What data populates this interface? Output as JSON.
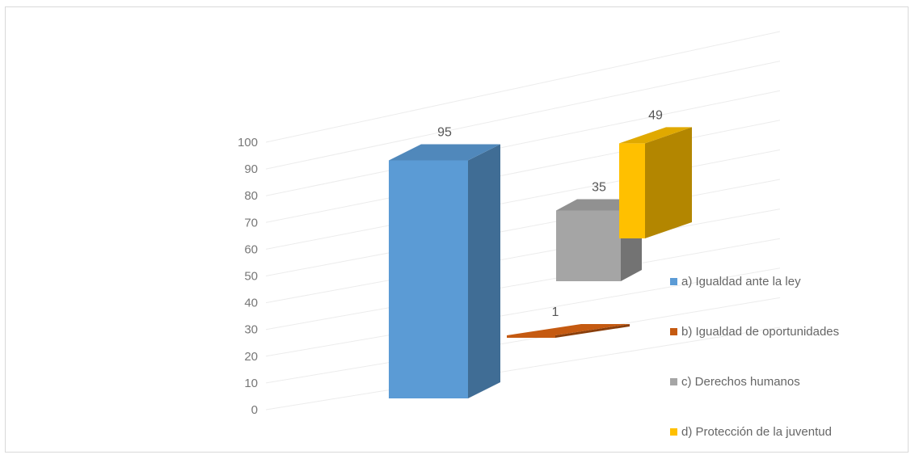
{
  "chart_data": {
    "type": "bar",
    "title": "",
    "xlabel": "",
    "ylabel": "",
    "ylim": [
      0,
      100
    ],
    "yticks": [
      0,
      10,
      20,
      30,
      40,
      50,
      60,
      70,
      80,
      90,
      100
    ],
    "grid": true,
    "three_d": true,
    "legend_position": "right",
    "categories": [
      "a) Igualdad ante la ley",
      "b) Igualdad de oportunidades",
      "c) Derechos humanos",
      "d) Protección de la juventud"
    ],
    "values": [
      95,
      1,
      35,
      49
    ],
    "data_labels": [
      "95",
      "1",
      "35",
      "49"
    ],
    "colors": [
      "#5b9bd5",
      "#c55a11",
      "#a5a5a5",
      "#ffc000"
    ]
  }
}
